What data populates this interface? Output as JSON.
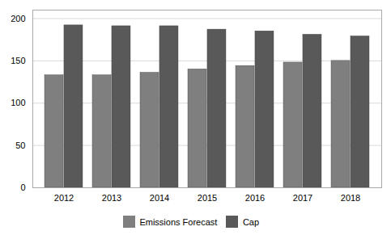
{
  "chart_data": {
    "type": "bar",
    "categories": [
      "2012",
      "2013",
      "2014",
      "2015",
      "2016",
      "2017",
      "2018"
    ],
    "series": [
      {
        "name": "Emissions Forecast",
        "color": "#7f7f7f",
        "values": [
          133,
          133,
          136,
          140,
          144,
          148,
          150
        ]
      },
      {
        "name": "Cap",
        "color": "#595959",
        "values": [
          192,
          191,
          191,
          187,
          185,
          181,
          179
        ]
      }
    ],
    "ylim": [
      0,
      210
    ],
    "yticks": [
      0,
      50,
      100,
      150,
      200
    ],
    "grid": true,
    "legend": "bottom"
  }
}
